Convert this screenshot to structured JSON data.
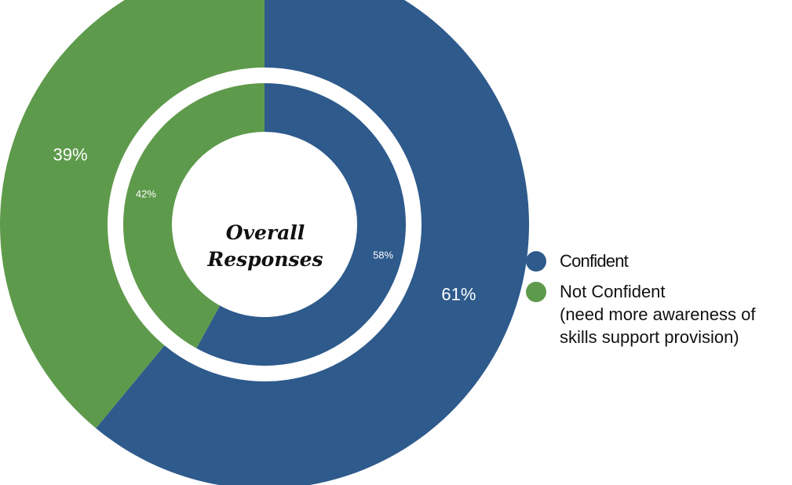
{
  "chart_data": {
    "type": "pie",
    "center_label": [
      "Overall",
      "Responses"
    ],
    "series": [
      {
        "values": [
          61,
          39
        ],
        "labels": [
          "61%",
          "39%"
        ]
      },
      {
        "values": [
          58,
          42
        ],
        "labels": [
          "58%",
          "42%"
        ]
      }
    ],
    "categories": [
      "Confident",
      "Not Confident (need more awareness of skills support provision)"
    ],
    "colors": {
      "Confident": "#2E5A8C",
      "Not Confident": "#5E9A4B"
    },
    "legend": {
      "position": "right",
      "items": [
        {
          "lines": [
            "Confident"
          ],
          "color": "#2E5A8C"
        },
        {
          "lines": [
            "Not Confident",
            "(need more awareness of",
            "skills support provision)"
          ],
          "color": "#5E9A4B"
        }
      ]
    }
  }
}
